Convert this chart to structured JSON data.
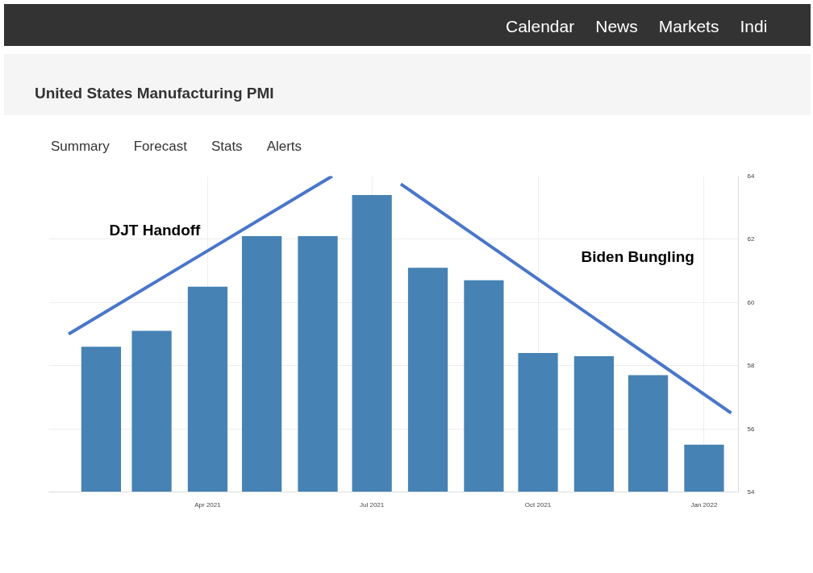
{
  "chart_data": {
    "type": "bar",
    "title": "United States Manufacturing PMI",
    "annotations": [
      "Calendar",
      "News",
      "Markets",
      "Indi",
      "Summary",
      "Forecast",
      "Stats",
      "Alerts",
      "DJT Handoff",
      "Biden Bungling"
    ],
    "series": [
      {
        "color": "#4682b4",
        "x": [
          "2021-02",
          "2021-03",
          "2021-04",
          "2021-05",
          "2021-06",
          "2021-07",
          "2021-08",
          "2021-09",
          "2021-10",
          "2021-11",
          "2021-12",
          "2022-01"
        ],
        "values": [
          58.6,
          59.1,
          60.5,
          62.1,
          62.1,
          63.4,
          61.1,
          60.7,
          58.4,
          58.3,
          57.7,
          55.5
        ]
      },
      {
        "type": "line",
        "color": "#4a76c9",
        "x": [
          "2021-01-14",
          "2021-06-09"
        ],
        "values": [
          59.0,
          64.0
        ]
      },
      {
        "type": "line",
        "color": "#4a76c9",
        "x": [
          "2021-07-17",
          "2022-01-16"
        ],
        "values": [
          63.75,
          56.5
        ]
      }
    ],
    "xlim": [
      "2021-01-03",
      "2022-01-20"
    ],
    "xticks": [
      {
        "value": "2021-04",
        "label": "Apr 2021"
      },
      {
        "value": "2021-07",
        "label": "Jul 2021"
      },
      {
        "value": "2021-10",
        "label": "Oct 2021"
      },
      {
        "value": "2022-01",
        "label": "Jan 2022"
      }
    ],
    "ylim": [
      54,
      64
    ],
    "yticks": [
      54,
      56,
      58,
      60,
      62,
      64
    ],
    "grid": true
  }
}
